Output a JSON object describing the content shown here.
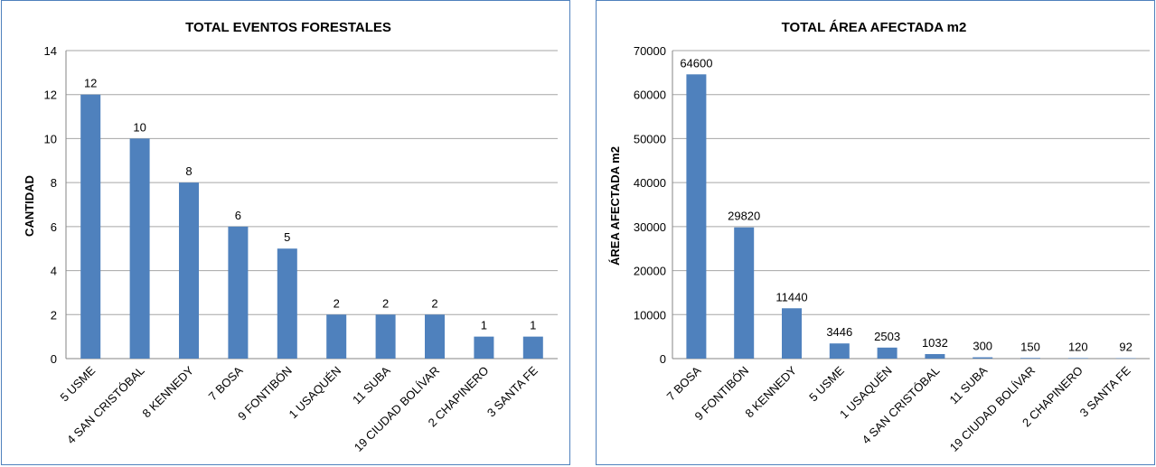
{
  "chart_data": [
    {
      "type": "bar",
      "title": "TOTAL EVENTOS FORESTALES",
      "xlabel": "",
      "ylabel": "CANTIDAD",
      "ylim": [
        0,
        14
      ],
      "yticks": [
        0,
        2,
        4,
        6,
        8,
        10,
        12,
        14
      ],
      "categories": [
        "5 USME",
        "4 SAN CRISTÓBAL",
        "8 KENNEDY",
        "7 BOSA",
        "9 FONTIBÓN",
        "1 USAQUÉN",
        "11 SUBA",
        "19 CIUDAD BOLÍVAR",
        "2 CHAPINERO",
        "3 SANTA FE"
      ],
      "values": [
        12,
        10,
        8,
        6,
        5,
        2,
        2,
        2,
        1,
        1
      ],
      "grid": true,
      "legend": "none",
      "bar_color": "#4f81bd"
    },
    {
      "type": "bar",
      "title": "TOTAL ÁREA AFECTADA m2",
      "xlabel": "",
      "ylabel": "ÁREA AFECTADA m2",
      "ylim": [
        0,
        70000
      ],
      "yticks": [
        0,
        10000,
        20000,
        30000,
        40000,
        50000,
        60000,
        70000
      ],
      "categories": [
        "7 BOSA",
        "9 FONTIBÓN",
        "8 KENNEDY",
        "5 USME",
        "1 USAQUÉN",
        "4 SAN CRISTÓBAL",
        "11 SUBA",
        "19 CIUDAD BOLÍVAR",
        "2 CHAPINERO",
        "3 SANTA FE"
      ],
      "values": [
        64600,
        29820,
        11440,
        3446,
        2503,
        1032,
        300,
        150,
        120,
        92
      ],
      "grid": true,
      "legend": "none",
      "bar_color": "#4f81bd"
    }
  ]
}
